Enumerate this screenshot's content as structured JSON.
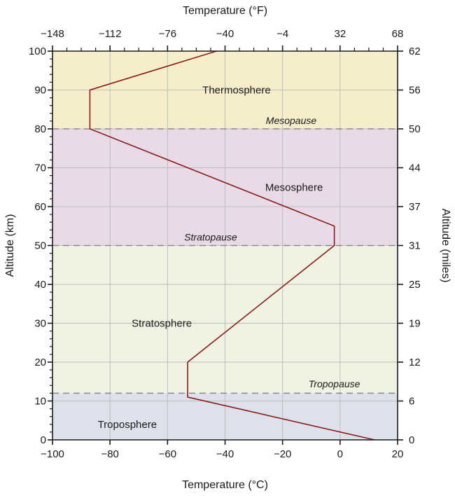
{
  "chart_data": {
    "type": "line",
    "title": "",
    "xlabel": "Temperature (°C)",
    "x2label": "Temperature (°F)",
    "ylabel": "Altitude (km)",
    "y2label": "Altitude (miles)",
    "xlim": [
      -100,
      20
    ],
    "ylim": [
      0,
      100
    ],
    "x_ticks": [
      -100,
      -80,
      -60,
      -40,
      -20,
      0,
      20
    ],
    "x_tick_labels": [
      "−100",
      "−80",
      "−60",
      "−40",
      "−20",
      "0",
      "20"
    ],
    "x2_tick_labels": [
      "−148",
      "−112",
      "−76",
      "−40",
      "−4",
      "32",
      "68"
    ],
    "y_ticks": [
      0,
      10,
      20,
      30,
      40,
      50,
      60,
      70,
      80,
      90,
      100
    ],
    "y_tick_labels": [
      "0",
      "10",
      "20",
      "30",
      "40",
      "50",
      "60",
      "70",
      "80",
      "90",
      "100"
    ],
    "y2_tick_labels": [
      "0",
      "6",
      "12",
      "19",
      "25",
      "31",
      "37",
      "44",
      "50",
      "56",
      "62"
    ],
    "grid": true,
    "series": [
      {
        "color": "#8b1a1a",
        "points": [
          [
            12,
            0
          ],
          [
            -53,
            11
          ],
          [
            -53,
            20
          ],
          [
            -2,
            50
          ],
          [
            -2,
            55
          ],
          [
            -87,
            80
          ],
          [
            -87,
            90
          ],
          [
            -43,
            100
          ]
        ]
      }
    ],
    "layers": [
      {
        "name": "Troposphere",
        "from": 0,
        "to": 12,
        "color": "#dde1ec",
        "label_at": [
          -74,
          4
        ]
      },
      {
        "name": "Stratosphere",
        "from": 12,
        "to": 50,
        "color": "#eef3e2",
        "label_at": [
          -62,
          30
        ]
      },
      {
        "name": "Mesosphere",
        "from": 50,
        "to": 80,
        "color": "#e8dbe7",
        "label_at": [
          -16,
          65
        ]
      },
      {
        "name": "Thermosphere",
        "from": 80,
        "to": 100,
        "color": "#f6eecb",
        "label_at": [
          -36,
          90
        ]
      }
    ],
    "boundaries": [
      {
        "name": "Tropopause",
        "altitude": 12,
        "label_at": [
          -2,
          13.5
        ]
      },
      {
        "name": "Stratopause",
        "altitude": 50,
        "label_at": [
          -45,
          51.3
        ]
      },
      {
        "name": "Mesopause",
        "altitude": 80,
        "label_at": [
          -17,
          81.3
        ]
      }
    ]
  }
}
